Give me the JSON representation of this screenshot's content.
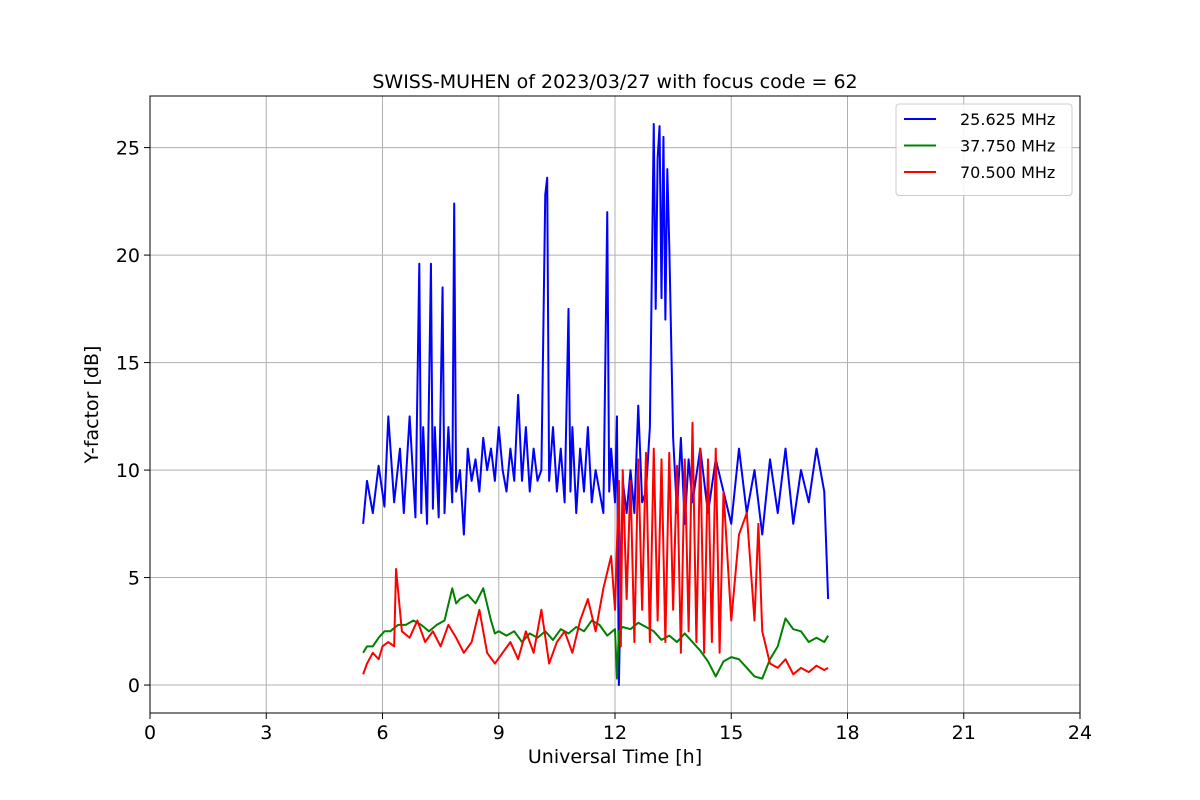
{
  "chart_data": {
    "type": "line",
    "title": "SWISS-MUHEN of 2023/03/27 with focus code = 62",
    "xlabel": "Universal Time [h]",
    "ylabel": "Y-factor [dB]",
    "xlim": [
      0,
      24
    ],
    "ylim": [
      -1.3,
      27.4
    ],
    "xticks": [
      0,
      3,
      6,
      9,
      12,
      15,
      18,
      21,
      24
    ],
    "yticks": [
      0,
      5,
      10,
      15,
      20,
      25
    ],
    "grid": true,
    "legend_position": "top-right",
    "series": [
      {
        "name": "25.625 MHz",
        "color": "#0000ff",
        "x": [
          5.5,
          5.6,
          5.75,
          5.9,
          6.05,
          6.15,
          6.3,
          6.45,
          6.55,
          6.7,
          6.85,
          6.95,
          7.0,
          7.05,
          7.15,
          7.25,
          7.3,
          7.35,
          7.45,
          7.55,
          7.6,
          7.7,
          7.8,
          7.85,
          7.9,
          8.0,
          8.1,
          8.2,
          8.3,
          8.4,
          8.5,
          8.6,
          8.7,
          8.8,
          8.9,
          9.0,
          9.1,
          9.2,
          9.3,
          9.4,
          9.5,
          9.6,
          9.7,
          9.8,
          9.9,
          10.0,
          10.1,
          10.2,
          10.25,
          10.3,
          10.4,
          10.5,
          10.6,
          10.7,
          10.8,
          10.85,
          10.9,
          11.0,
          11.1,
          11.2,
          11.3,
          11.4,
          11.5,
          11.6,
          11.7,
          11.8,
          11.85,
          11.9,
          12.0,
          12.05,
          12.1,
          12.2,
          12.3,
          12.4,
          12.5,
          12.6,
          12.7,
          12.8,
          12.9,
          13.0,
          13.05,
          13.1,
          13.15,
          13.2,
          13.25,
          13.3,
          13.35,
          13.4,
          13.5,
          13.6,
          13.7,
          13.8,
          13.9,
          14.0,
          14.2,
          14.4,
          14.6,
          14.8,
          15.0,
          15.2,
          15.4,
          15.6,
          15.8,
          16.0,
          16.2,
          16.4,
          16.6,
          16.8,
          17.0,
          17.2,
          17.4,
          17.5
        ],
        "y": [
          7.5,
          9.5,
          8.0,
          10.2,
          8.3,
          12.5,
          8.5,
          11.0,
          8.0,
          12.5,
          7.8,
          19.6,
          8.0,
          12.0,
          7.5,
          19.6,
          8.2,
          12.0,
          7.8,
          18.5,
          8.0,
          12.0,
          8.5,
          22.4,
          9.0,
          10.0,
          7.0,
          11.0,
          9.5,
          10.5,
          9.0,
          11.5,
          10.0,
          11.0,
          9.5,
          12.0,
          10.0,
          9.0,
          11.0,
          9.5,
          13.5,
          9.5,
          12.0,
          9.0,
          11.0,
          9.5,
          10.0,
          22.8,
          23.6,
          9.5,
          12.0,
          9.0,
          11.0,
          8.5,
          17.5,
          9.0,
          12.0,
          8.0,
          11.0,
          9.0,
          12.0,
          8.5,
          10.0,
          9.0,
          8.0,
          22.0,
          9.0,
          11.0,
          8.5,
          12.5,
          0.0,
          9.5,
          8.0,
          10.0,
          8.0,
          13.0,
          8.5,
          9.0,
          12.0,
          26.1,
          17.5,
          24.5,
          26.0,
          18.0,
          25.5,
          17.0,
          24.0,
          20.5,
          11.5,
          8.0,
          11.5,
          7.5,
          10.5,
          8.5,
          11.0,
          8.0,
          10.5,
          9.0,
          7.5,
          11.0,
          8.0,
          10.0,
          7.0,
          10.5,
          8.0,
          11.0,
          7.5,
          10.0,
          8.5,
          11.0,
          9.0,
          4.0
        ]
      },
      {
        "name": "37.750 MHz",
        "color": "#008000",
        "x": [
          5.5,
          5.6,
          5.75,
          5.9,
          6.05,
          6.2,
          6.4,
          6.6,
          6.8,
          7.0,
          7.2,
          7.4,
          7.6,
          7.8,
          7.9,
          8.0,
          8.2,
          8.4,
          8.6,
          8.8,
          8.9,
          9.0,
          9.2,
          9.4,
          9.6,
          9.8,
          10.0,
          10.2,
          10.4,
          10.6,
          10.8,
          11.0,
          11.2,
          11.4,
          11.6,
          11.8,
          12.0,
          12.05,
          12.1,
          12.2,
          12.4,
          12.6,
          12.8,
          13.0,
          13.2,
          13.4,
          13.6,
          13.8,
          14.0,
          14.2,
          14.4,
          14.6,
          14.8,
          15.0,
          15.2,
          15.4,
          15.6,
          15.8,
          16.0,
          16.2,
          16.4,
          16.6,
          16.8,
          17.0,
          17.2,
          17.4,
          17.5
        ],
        "y": [
          1.5,
          1.8,
          1.8,
          2.2,
          2.5,
          2.5,
          2.8,
          2.8,
          3.0,
          2.8,
          2.5,
          2.8,
          3.0,
          4.5,
          3.8,
          4.0,
          4.2,
          3.8,
          4.5,
          3.0,
          2.4,
          2.5,
          2.3,
          2.5,
          2.0,
          2.4,
          2.2,
          2.5,
          2.1,
          2.6,
          2.4,
          2.7,
          2.5,
          3.0,
          2.8,
          2.3,
          2.6,
          0.3,
          2.5,
          2.7,
          2.6,
          2.9,
          2.7,
          2.5,
          2.1,
          2.3,
          2.0,
          2.4,
          2.0,
          1.6,
          1.1,
          0.4,
          1.1,
          1.3,
          1.2,
          0.8,
          0.4,
          0.3,
          1.2,
          1.8,
          3.1,
          2.6,
          2.5,
          2.0,
          2.2,
          2.0,
          2.3
        ]
      },
      {
        "name": "70.500 MHz",
        "color": "#ff0000",
        "x": [
          5.5,
          5.6,
          5.75,
          5.9,
          6.0,
          6.15,
          6.3,
          6.35,
          6.5,
          6.7,
          6.9,
          7.1,
          7.3,
          7.5,
          7.7,
          7.9,
          8.1,
          8.3,
          8.5,
          8.7,
          8.9,
          9.1,
          9.3,
          9.5,
          9.7,
          9.9,
          10.1,
          10.3,
          10.5,
          10.7,
          10.9,
          11.1,
          11.3,
          11.5,
          11.7,
          11.9,
          12.0,
          12.1,
          12.15,
          12.2,
          12.3,
          12.4,
          12.5,
          12.6,
          12.7,
          12.8,
          12.9,
          13.0,
          13.1,
          13.2,
          13.3,
          13.4,
          13.5,
          13.6,
          13.7,
          13.8,
          13.9,
          14.0,
          14.1,
          14.2,
          14.3,
          14.4,
          14.5,
          14.6,
          14.7,
          14.8,
          15.0,
          15.2,
          15.4,
          15.6,
          15.7,
          15.8,
          16.0,
          16.2,
          16.4,
          16.6,
          16.8,
          17.0,
          17.2,
          17.4,
          17.5
        ],
        "y": [
          0.5,
          1.0,
          1.5,
          1.2,
          1.8,
          2.0,
          1.8,
          5.4,
          2.5,
          2.2,
          3.0,
          2.0,
          2.5,
          1.8,
          2.8,
          2.2,
          1.5,
          2.0,
          3.5,
          1.5,
          1.0,
          1.5,
          2.0,
          1.2,
          2.5,
          1.5,
          3.5,
          1.0,
          2.0,
          2.5,
          1.5,
          3.0,
          4.0,
          2.5,
          4.5,
          6.0,
          3.5,
          9.5,
          1.8,
          10.0,
          4.0,
          9.5,
          2.0,
          10.5,
          3.5,
          10.8,
          2.0,
          11.0,
          3.0,
          10.5,
          2.0,
          10.8,
          3.5,
          10.2,
          1.5,
          10.5,
          2.5,
          12.2,
          2.0,
          11.0,
          1.5,
          10.5,
          2.0,
          11.0,
          1.5,
          9.0,
          3.0,
          7.0,
          8.0,
          3.0,
          7.5,
          2.5,
          1.0,
          0.8,
          1.2,
          0.5,
          0.8,
          0.6,
          0.9,
          0.7,
          0.8
        ]
      }
    ]
  }
}
